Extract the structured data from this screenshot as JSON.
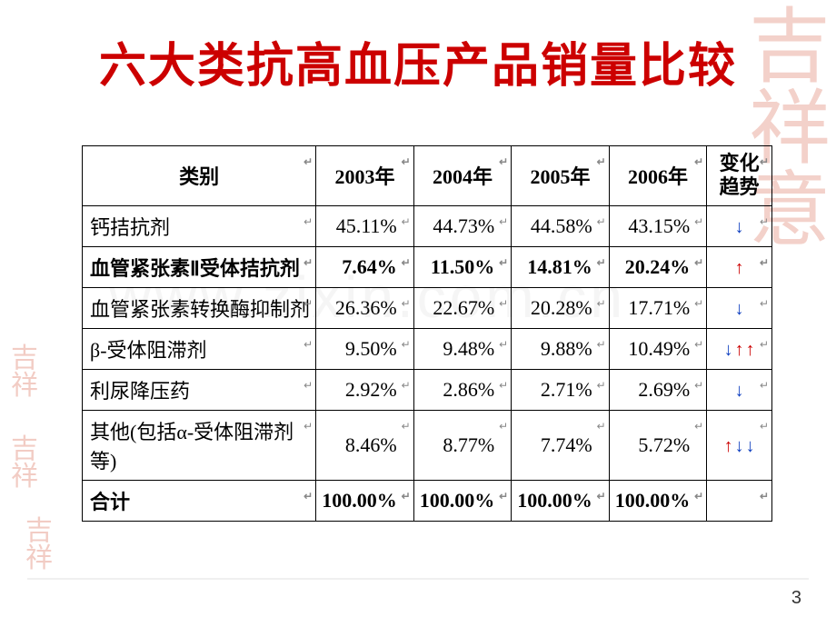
{
  "title": "六大类抗高血压产品销量比较",
  "page_number": "3",
  "watermark": "www.zixin.com.cn",
  "seals": {
    "big": "吉祥意",
    "small": "吉祥"
  },
  "marker": "↵",
  "table": {
    "headers": {
      "category": "类别",
      "y2003": "2003年",
      "y2004": "2004年",
      "y2005": "2005年",
      "y2006": "2006年",
      "trend": "变化趋势"
    },
    "rows": [
      {
        "cat": "钙拮抗剂",
        "y2003": "45.11%",
        "y2004": "44.73%",
        "y2005": "44.58%",
        "y2006": "43.15%",
        "trend": [
          "down"
        ],
        "bold": false
      },
      {
        "cat": "血管紧张素Ⅱ受体拮抗剂",
        "y2003": "7.64%",
        "y2004": "11.50%",
        "y2005": "14.81%",
        "y2006": "20.24%",
        "trend": [
          "up"
        ],
        "bold": true
      },
      {
        "cat": "血管紧张素转换酶抑制剂",
        "y2003": "26.36%",
        "y2004": "22.67%",
        "y2005": "20.28%",
        "y2006": "17.71%",
        "trend": [
          "down"
        ],
        "bold": false
      },
      {
        "cat": "β-受体阻滞剂",
        "y2003": "9.50%",
        "y2004": "9.48%",
        "y2005": "9.88%",
        "y2006": "10.49%",
        "trend": [
          "down",
          "up",
          "up"
        ],
        "bold": false
      },
      {
        "cat": "利尿降压药",
        "y2003": "2.92%",
        "y2004": "2.86%",
        "y2005": "2.71%",
        "y2006": "2.69%",
        "trend": [
          "down"
        ],
        "bold": false
      },
      {
        "cat": "其他(包括α-受体阻滞剂等)",
        "y2003": "8.46%",
        "y2004": "8.77%",
        "y2005": "7.74%",
        "y2006": "5.72%",
        "trend": [
          "up",
          "down",
          "down"
        ],
        "bold": false
      },
      {
        "cat": "合计",
        "y2003": "100.00%",
        "y2004": "100.00%",
        "y2005": "100.00%",
        "y2006": "100.00%",
        "trend": [],
        "bold": true
      }
    ]
  },
  "colors": {
    "title": "#cc0000",
    "up": "#cc0000",
    "down": "#1040c0",
    "border": "#000000",
    "background": "#ffffff"
  }
}
